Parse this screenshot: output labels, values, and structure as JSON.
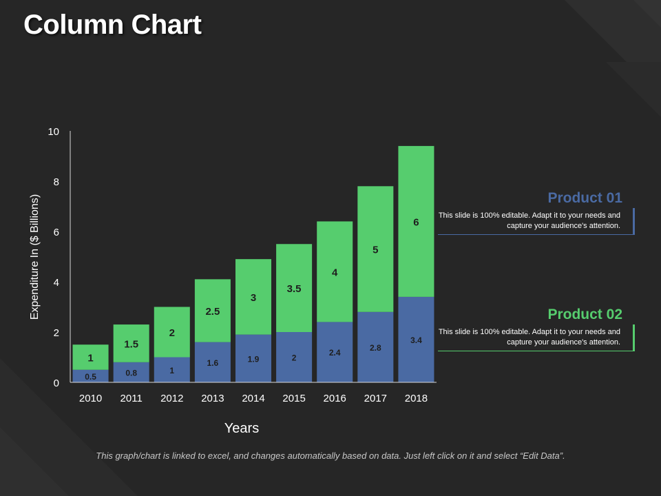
{
  "slide": {
    "title": "Column Chart",
    "footer_note": "This graph/chart is linked to excel, and changes automatically based on data. Just left click on it and select “Edit Data”."
  },
  "legend": [
    {
      "title": "Product 01",
      "text": "This slide is 100% editable. Adapt it to your needs and capture your audience's attention.",
      "color": "#4a6aa3"
    },
    {
      "title": "Product 02",
      "text": "This slide is 100% editable. Adapt it to your needs and capture your audience's attention.",
      "color": "#56cd6e"
    }
  ],
  "chart_data": {
    "type": "bar",
    "stacked": true,
    "categories": [
      "2010",
      "2011",
      "2012",
      "2013",
      "2014",
      "2015",
      "2016",
      "2017",
      "2018"
    ],
    "series": [
      {
        "name": "Product 01",
        "color": "#4a6aa3",
        "values": [
          0.5,
          0.8,
          1,
          1.6,
          1.9,
          2,
          2.4,
          2.8,
          3.4
        ]
      },
      {
        "name": "Product 02",
        "color": "#56cd6e",
        "values": [
          1,
          1.5,
          2,
          2.5,
          3,
          3.5,
          4,
          5,
          6
        ]
      }
    ],
    "title": "",
    "xlabel": "Years",
    "ylabel": "Expenditure  In ($ Billions)",
    "ylim": [
      0,
      10
    ],
    "yticks": [
      0,
      2,
      4,
      6,
      8,
      10
    ],
    "grid": false
  }
}
